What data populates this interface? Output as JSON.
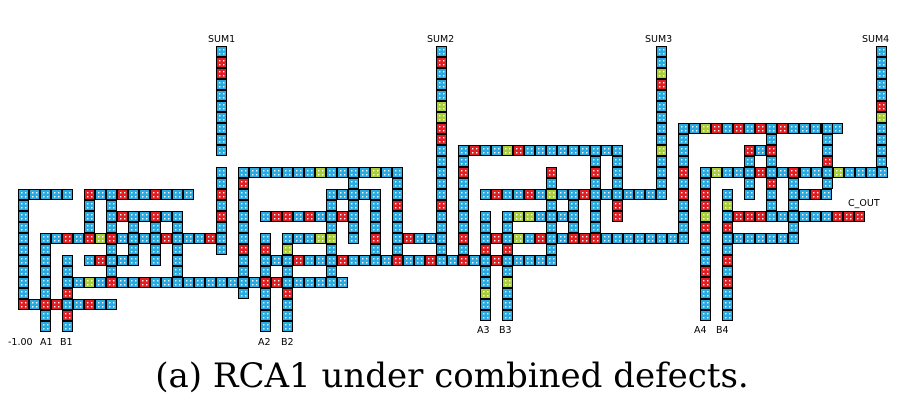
{
  "labels": {
    "cin": "-1.00",
    "a1": "A1",
    "b1": "B1",
    "a2": "A2",
    "b2": "B2",
    "a3": "A3",
    "b3": "B3",
    "a4": "A4",
    "b4": "B4",
    "sum1": "SUM1",
    "sum2": "SUM2",
    "sum3": "SUM3",
    "sum4": "SUM4",
    "cout": "C_OUT"
  },
  "caption": "(a) RCA1 under combined defects.",
  "colors": {
    "normal": "#29abe2",
    "defect_red": "#e01e24",
    "defect_green": "#a8cf38",
    "border": "#000000"
  }
}
